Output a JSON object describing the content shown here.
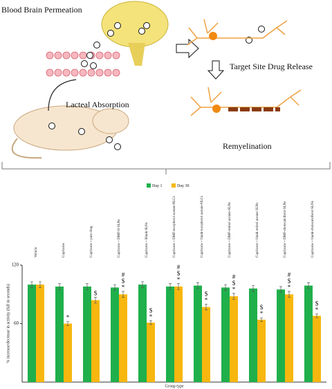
{
  "diagram": {
    "labels": [
      "Blood Brain Permeation",
      "Target Site Drug Release",
      "Lacteal Absorption",
      "Remyelination"
    ]
  },
  "chart_data": {
    "type": "bar",
    "categories": [
      "Vehicle",
      "Cuprizone",
      "Cuprizone + pure drug",
      "Cuprizone + DMF-O-SLNs",
      "Cuprizone + Blank SLNs",
      "Cuprizone + DMF-tocopherol acetate-NLCs",
      "Cuprizone + blank-tocopherol acetate-NLCs",
      "Cuprizone + DMF-retinol acetate-SLNs",
      "Cuprizone + blank retinol acetate SLNs",
      "Cuprizone + DMF-cholecalciferol-SLNs",
      "Cuprizone + blank-cholecalciferol-SLNs"
    ],
    "series": [
      {
        "name": "Day 1",
        "color": "#1fb04b",
        "values": [
          100,
          98,
          98,
          97,
          100,
          98,
          99,
          97,
          96,
          95,
          99
        ],
        "errors": [
          3,
          3,
          3,
          3,
          3,
          3,
          3,
          3,
          3,
          3,
          3
        ]
      },
      {
        "name": "Day 30",
        "color": "#f7b70f",
        "values": [
          100,
          60,
          84,
          90,
          61,
          98,
          77,
          88,
          64,
          90,
          68
        ],
        "errors": [
          3,
          2,
          3,
          3,
          2,
          3,
          3,
          3,
          2,
          3,
          2
        ]
      }
    ],
    "significance": [
      null,
      [
        "*"
      ],
      [
        "$"
      ],
      [
        "#",
        "$",
        "*"
      ],
      [
        "$",
        "*"
      ],
      [
        "#",
        "$",
        "*"
      ],
      [
        "$",
        "*"
      ],
      [
        "#",
        "$",
        "*"
      ],
      [
        "$",
        "*"
      ],
      [
        "#",
        "$",
        "*"
      ],
      [
        "$",
        "*"
      ]
    ],
    "y_label": "% increase/decrease in activity (fall in seconds)",
    "x_label": "Group type",
    "ylim": [
      0,
      120
    ],
    "yticks": [
      60,
      120
    ],
    "legend": "top"
  }
}
